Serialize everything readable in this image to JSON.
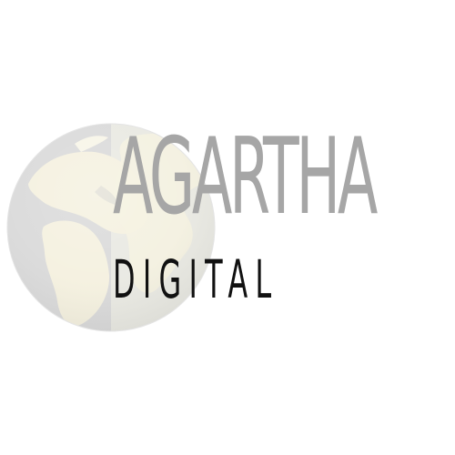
{
  "brand": {
    "primary_text": "AGARTHA",
    "secondary_text": "DIGITAL"
  },
  "colors": {
    "primary_text": "#a6a6a6",
    "secondary_text": "#111111",
    "globe_ocean": "#d8d8d8",
    "globe_land": "#efefe4",
    "globe_highlight": "#f4f0de"
  },
  "icons": {
    "globe": "world-globe-icon"
  }
}
